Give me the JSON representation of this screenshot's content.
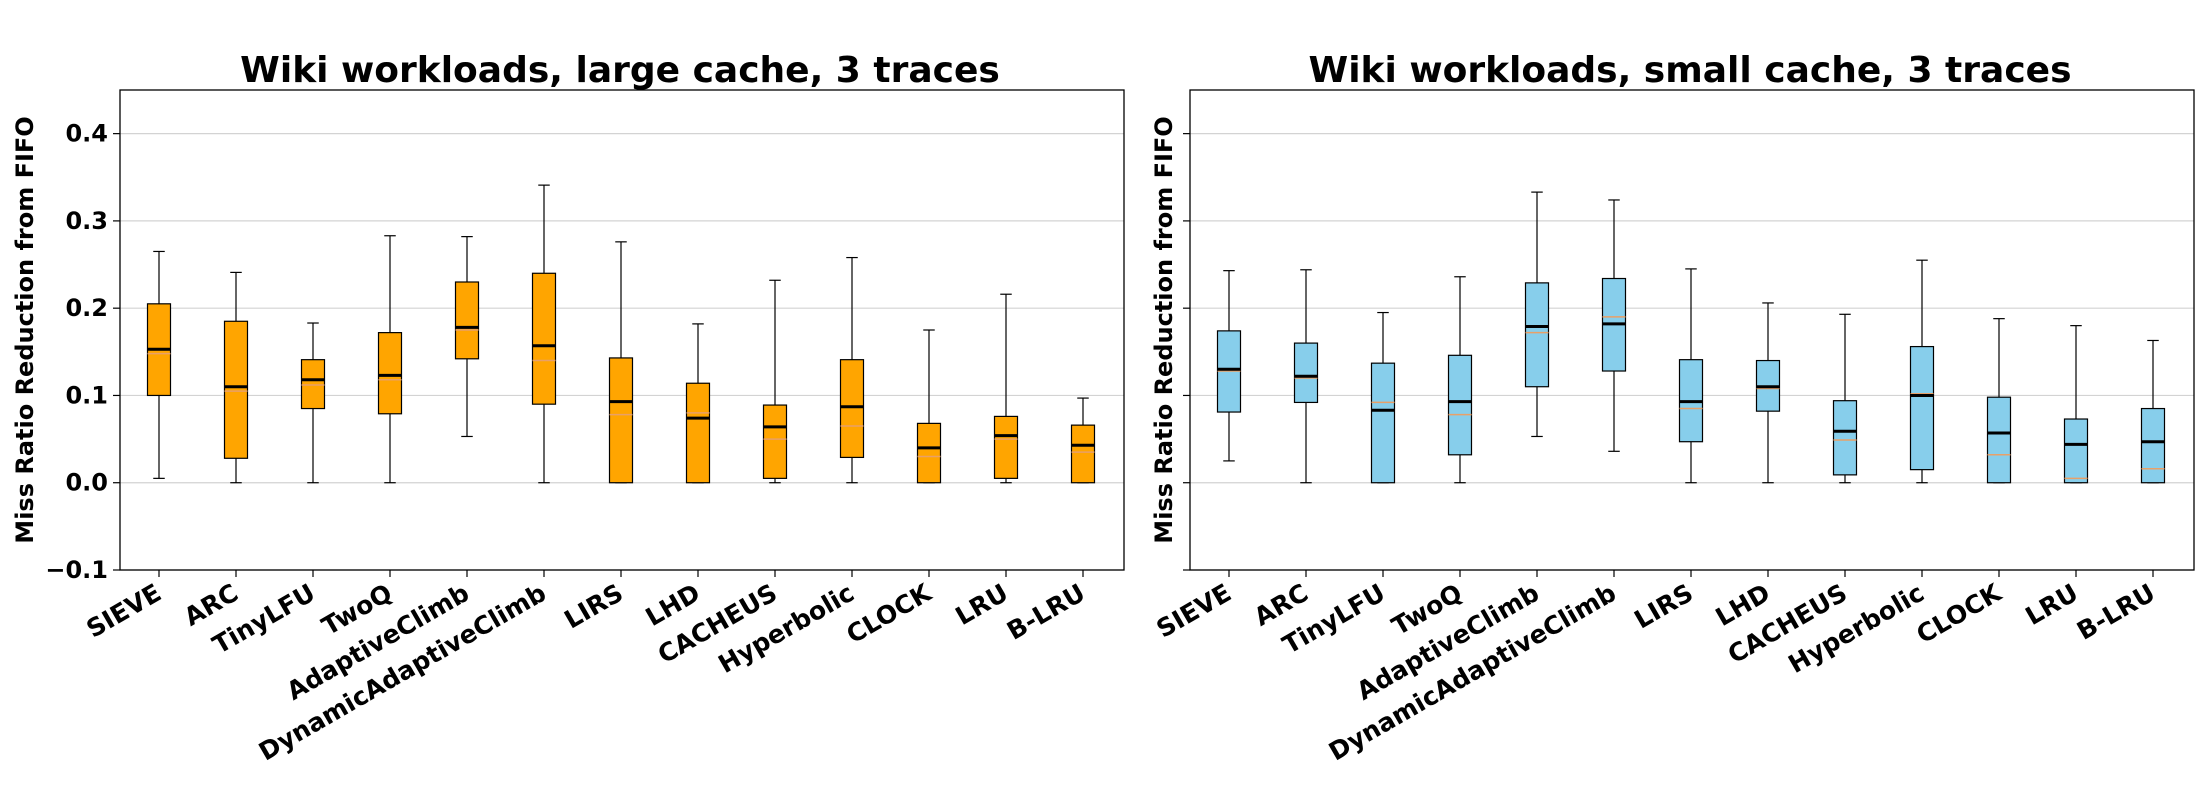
{
  "chart_data": [
    {
      "type": "boxplot",
      "title": "Wiki workloads, large cache, 3 traces",
      "ylabel": "Miss Ratio Reduction from FIFO",
      "xlabel": "",
      "ylim": [
        -0.1,
        0.45
      ],
      "yticks": [
        -0.1,
        0.0,
        0.1,
        0.2,
        0.3,
        0.4
      ],
      "ytick_labels": [
        "−0.1",
        "0.0",
        "0.1",
        "0.2",
        "0.3",
        "0.4"
      ],
      "grid": "horizontal",
      "box_color": "#FFA500",
      "categories": [
        "SIEVE",
        "ARC",
        "TinyLFU",
        "TwoQ",
        "AdaptiveClimb",
        "DynamicAdaptiveClimb",
        "LIRS",
        "LHD",
        "CACHEUS",
        "Hyperbolic",
        "CLOCK",
        "LRU",
        "B-LRU"
      ],
      "boxes": [
        {
          "whislo": 0.005,
          "q1": 0.1,
          "med": 0.153,
          "mean": 0.148,
          "q3": 0.205,
          "whishi": 0.265
        },
        {
          "whislo": 0.0,
          "q1": 0.028,
          "med": 0.11,
          "mean": 0.105,
          "q3": 0.185,
          "whishi": 0.241
        },
        {
          "whislo": 0.0,
          "q1": 0.085,
          "med": 0.118,
          "mean": 0.112,
          "q3": 0.141,
          "whishi": 0.183
        },
        {
          "whislo": 0.0,
          "q1": 0.079,
          "med": 0.123,
          "mean": 0.118,
          "q3": 0.172,
          "whishi": 0.283
        },
        {
          "whislo": 0.053,
          "q1": 0.142,
          "med": 0.178,
          "mean": 0.175,
          "q3": 0.23,
          "whishi": 0.282
        },
        {
          "whislo": 0.0,
          "q1": 0.09,
          "med": 0.157,
          "mean": 0.14,
          "q3": 0.24,
          "whishi": 0.341
        },
        {
          "whislo": 0.0,
          "q1": 0.0,
          "med": 0.093,
          "mean": 0.078,
          "q3": 0.143,
          "whishi": 0.276
        },
        {
          "whislo": 0.0,
          "q1": 0.0,
          "med": 0.074,
          "mean": 0.08,
          "q3": 0.114,
          "whishi": 0.182
        },
        {
          "whislo": 0.0,
          "q1": 0.005,
          "med": 0.064,
          "mean": 0.05,
          "q3": 0.089,
          "whishi": 0.232
        },
        {
          "whislo": 0.0,
          "q1": 0.029,
          "med": 0.087,
          "mean": 0.065,
          "q3": 0.141,
          "whishi": 0.258
        },
        {
          "whislo": 0.0,
          "q1": 0.0,
          "med": 0.04,
          "mean": 0.03,
          "q3": 0.068,
          "whishi": 0.175
        },
        {
          "whislo": 0.0,
          "q1": 0.005,
          "med": 0.054,
          "mean": 0.05,
          "q3": 0.076,
          "whishi": 0.216
        },
        {
          "whislo": 0.0,
          "q1": 0.0,
          "med": 0.043,
          "mean": 0.035,
          "q3": 0.066,
          "whishi": 0.097
        }
      ]
    },
    {
      "type": "boxplot",
      "title": "Wiki workloads, small cache, 3 traces",
      "ylabel": "Miss Ratio Reduction from FIFO",
      "xlabel": "",
      "ylim": [
        -0.1,
        0.45
      ],
      "yticks": [
        -0.1,
        0.0,
        0.1,
        0.2,
        0.3,
        0.4
      ],
      "ytick_labels": [
        "",
        "",
        "",
        "",
        "",
        ""
      ],
      "grid": "horizontal",
      "box_color": "#87CEEB",
      "categories": [
        "SIEVE",
        "ARC",
        "TinyLFU",
        "TwoQ",
        "AdaptiveClimb",
        "DynamicAdaptiveClimb",
        "LIRS",
        "LHD",
        "CACHEUS",
        "Hyperbolic",
        "CLOCK",
        "LRU",
        "B-LRU"
      ],
      "boxes": [
        {
          "whislo": 0.025,
          "q1": 0.081,
          "med": 0.13,
          "mean": 0.128,
          "q3": 0.174,
          "whishi": 0.243
        },
        {
          "whislo": 0.0,
          "q1": 0.092,
          "med": 0.122,
          "mean": 0.12,
          "q3": 0.16,
          "whishi": 0.244
        },
        {
          "whislo": 0.0,
          "q1": 0.0,
          "med": 0.083,
          "mean": 0.092,
          "q3": 0.137,
          "whishi": 0.195
        },
        {
          "whislo": 0.0,
          "q1": 0.032,
          "med": 0.093,
          "mean": 0.078,
          "q3": 0.146,
          "whishi": 0.236
        },
        {
          "whislo": 0.053,
          "q1": 0.11,
          "med": 0.179,
          "mean": 0.172,
          "q3": 0.229,
          "whishi": 0.333
        },
        {
          "whislo": 0.036,
          "q1": 0.128,
          "med": 0.182,
          "mean": 0.19,
          "q3": 0.234,
          "whishi": 0.324
        },
        {
          "whislo": 0.0,
          "q1": 0.047,
          "med": 0.093,
          "mean": 0.085,
          "q3": 0.141,
          "whishi": 0.245
        },
        {
          "whislo": 0.0,
          "q1": 0.082,
          "med": 0.11,
          "mean": 0.108,
          "q3": 0.14,
          "whishi": 0.206
        },
        {
          "whislo": 0.0,
          "q1": 0.009,
          "med": 0.059,
          "mean": 0.049,
          "q3": 0.094,
          "whishi": 0.193
        },
        {
          "whislo": 0.0,
          "q1": 0.015,
          "med": 0.1,
          "mean": 0.102,
          "q3": 0.156,
          "whishi": 0.255
        },
        {
          "whislo": 0.0,
          "q1": 0.0,
          "med": 0.057,
          "mean": 0.032,
          "q3": 0.098,
          "whishi": 0.188
        },
        {
          "whislo": 0.0,
          "q1": 0.0,
          "med": 0.044,
          "mean": 0.005,
          "q3": 0.073,
          "whishi": 0.18
        },
        {
          "whislo": 0.0,
          "q1": 0.0,
          "med": 0.047,
          "mean": 0.016,
          "q3": 0.085,
          "whishi": 0.163
        }
      ]
    }
  ]
}
